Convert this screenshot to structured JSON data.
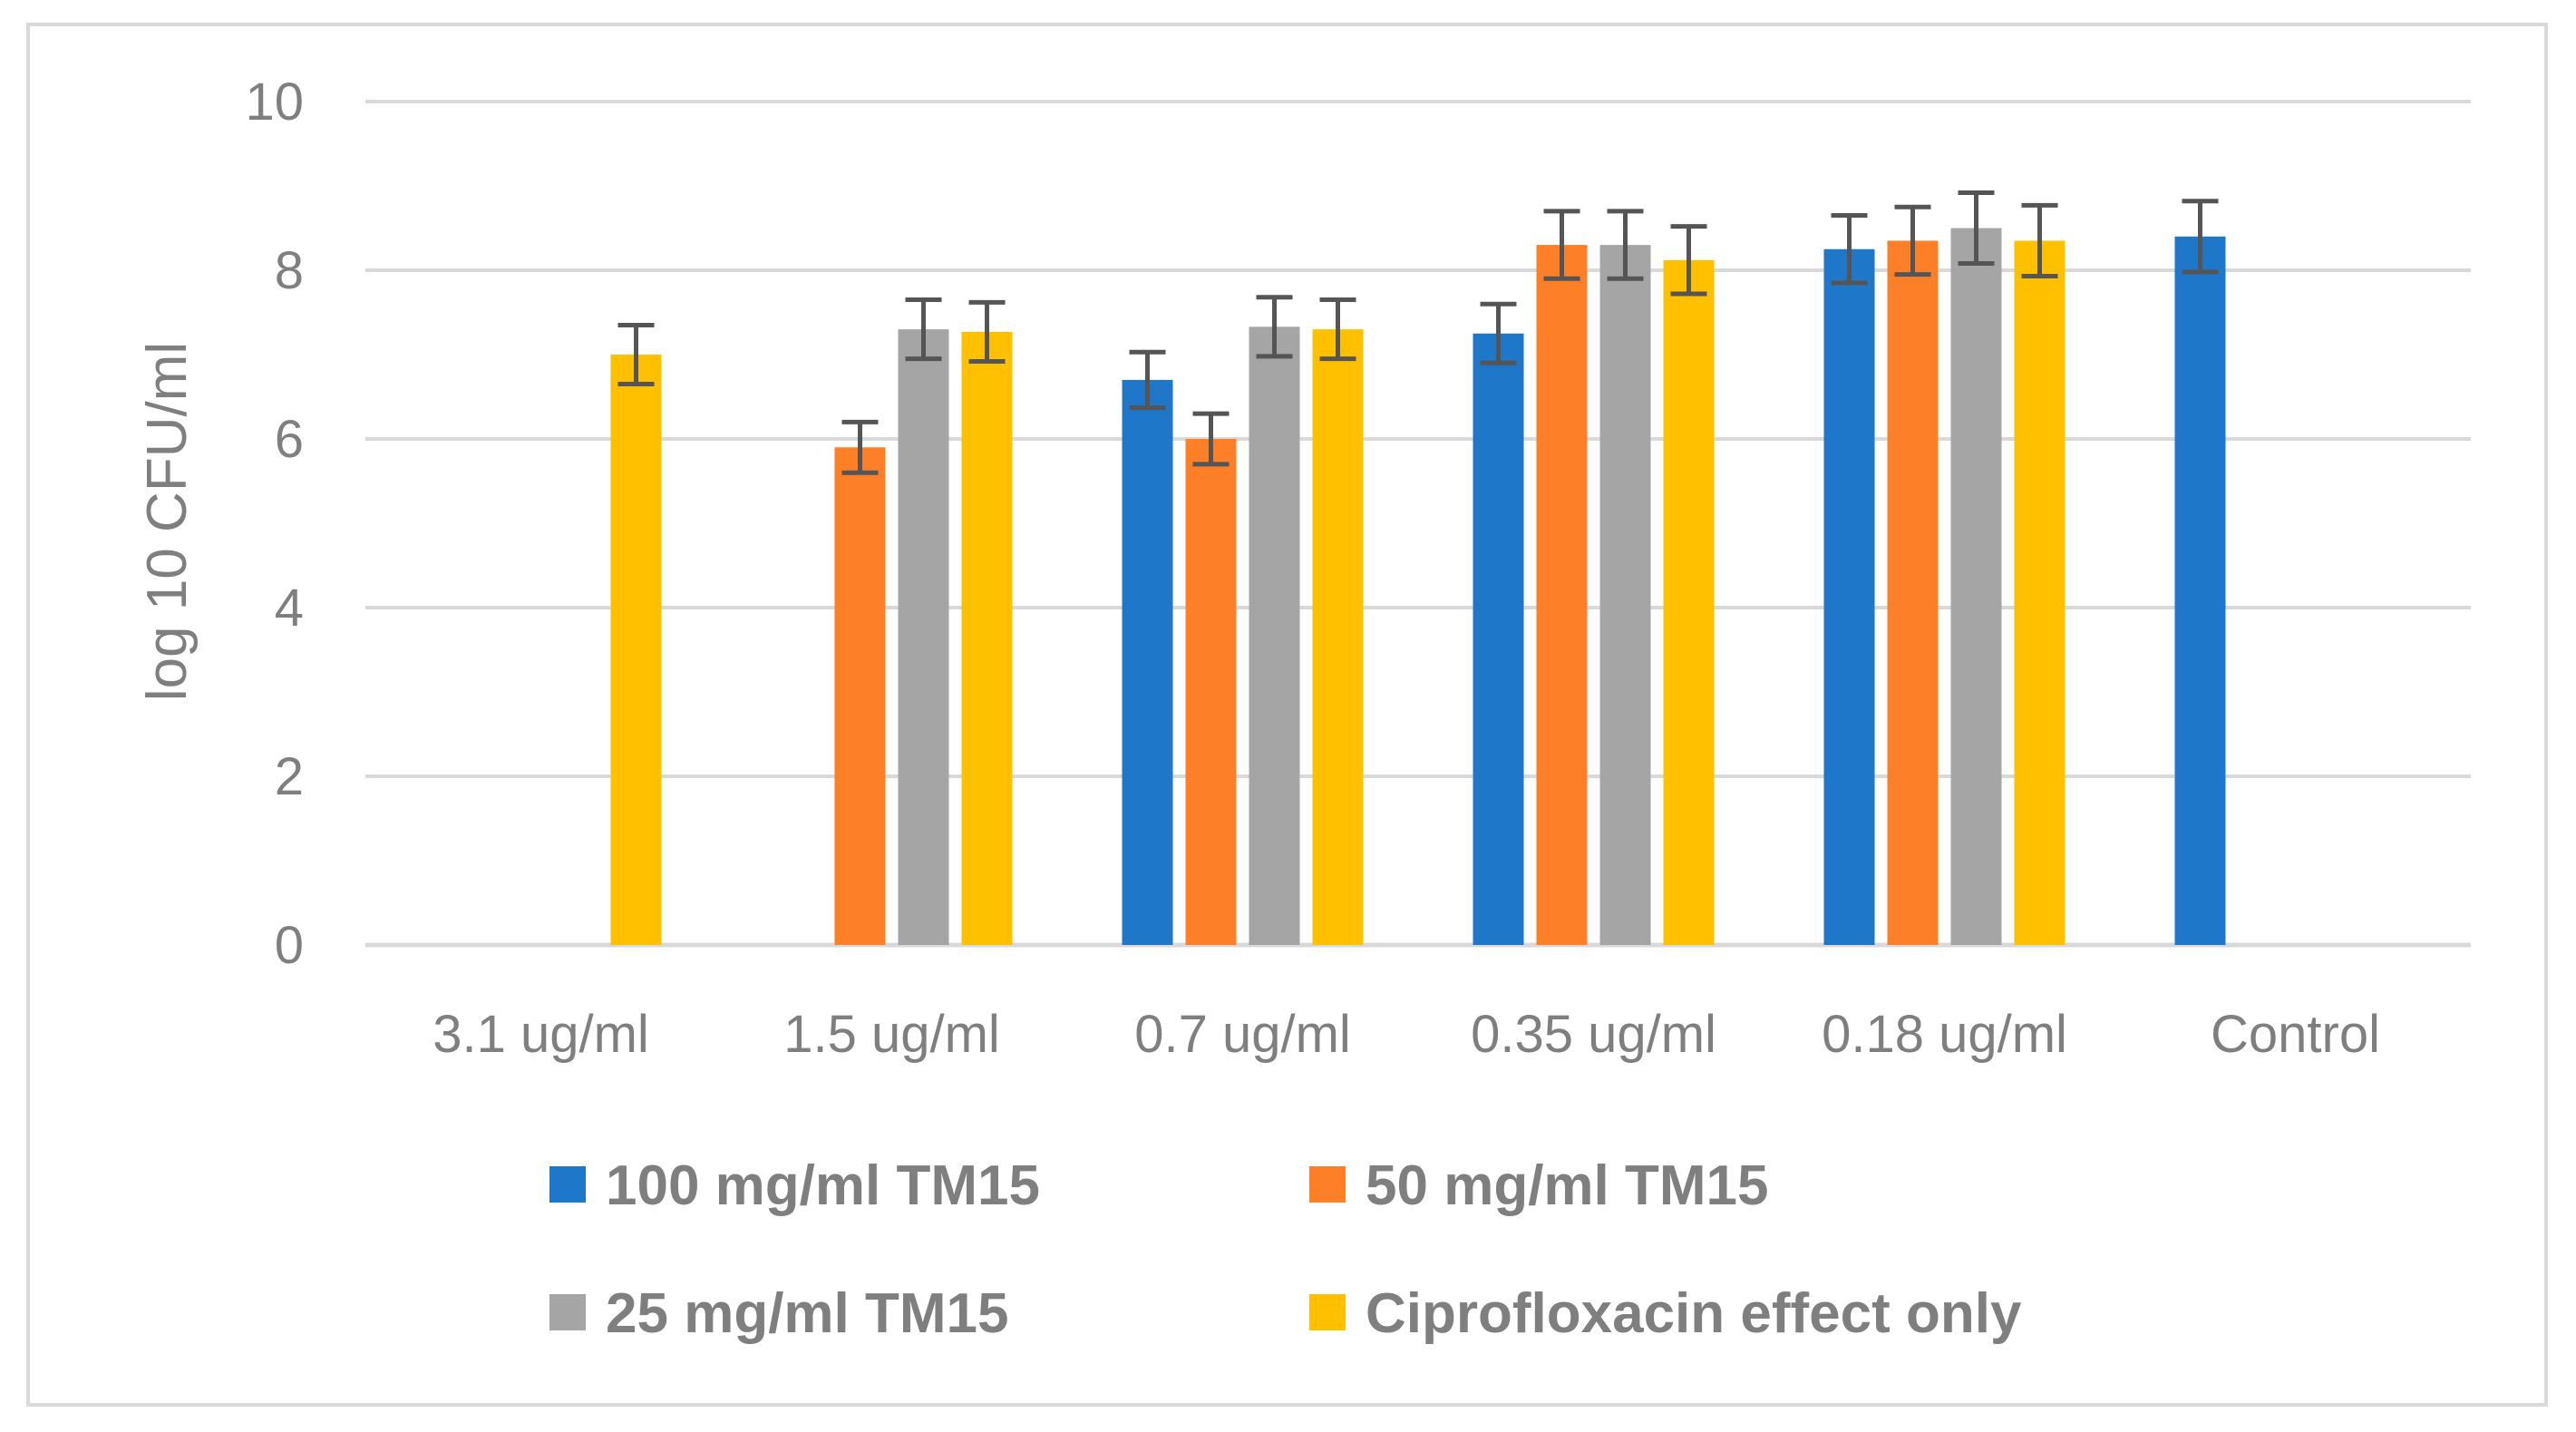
{
  "chart_data": {
    "type": "bar",
    "title": "",
    "xlabel": "",
    "ylabel": "log 10 CFU/ml",
    "ylim": [
      0,
      10
    ],
    "yticks": [
      "0",
      "2",
      "4",
      "6",
      "8",
      "10"
    ],
    "grid": true,
    "legend_position": "bottom",
    "categories": [
      "3.1 ug/ml",
      "1.5 ug/ml",
      "0.7 ug/ml",
      "0.35 ug/ml",
      "0.18 ug/ml",
      "Control"
    ],
    "series": [
      {
        "name": "100 mg/ml TM15",
        "color": "#1f77c9",
        "values": [
          null,
          null,
          6.7,
          7.25,
          8.25,
          8.4
        ],
        "errors": [
          null,
          null,
          0.33,
          0.35,
          0.4,
          0.42
        ]
      },
      {
        "name": "50 mg/ml TM15",
        "color": "#fd7f27",
        "values": [
          null,
          5.9,
          6.0,
          8.3,
          8.35,
          null
        ],
        "errors": [
          null,
          0.3,
          0.3,
          0.4,
          0.4,
          null
        ]
      },
      {
        "name": "25 mg/ml TM15",
        "color": "#a5a5a5",
        "values": [
          null,
          7.3,
          7.33,
          8.3,
          8.5,
          null
        ],
        "errors": [
          null,
          0.35,
          0.35,
          0.4,
          0.42,
          null
        ]
      },
      {
        "name": "Ciprofloxacin effect only",
        "color": "#ffc000",
        "values": [
          7.0,
          7.27,
          7.3,
          8.12,
          8.35,
          null
        ],
        "errors": [
          0.35,
          0.35,
          0.35,
          0.4,
          0.42,
          null
        ]
      }
    ],
    "colors": {
      "grid": "#d9d9d9",
      "axis_text": "#7f7f7f",
      "error_bar": "#555555"
    }
  }
}
